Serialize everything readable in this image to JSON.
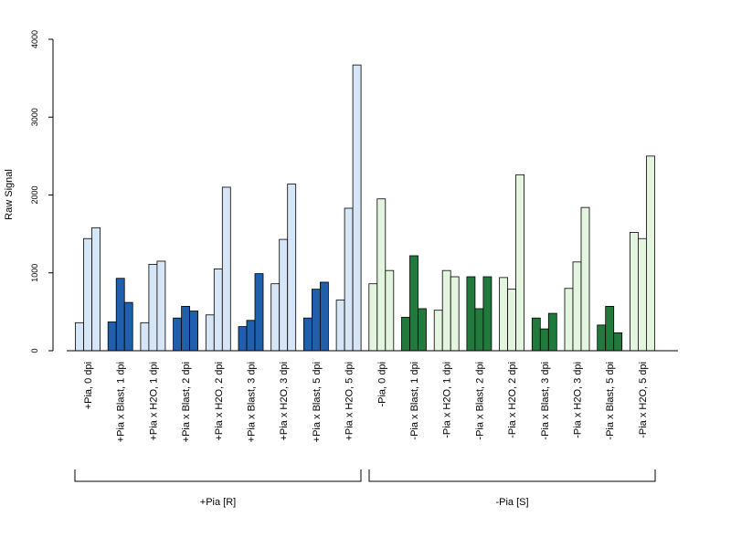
{
  "chart_data": {
    "type": "bar",
    "ylabel": "Raw Signal",
    "ylim": [
      0,
      4000
    ],
    "yticks": [
      0,
      1000,
      2000,
      3000,
      4000
    ],
    "grid": false,
    "categories": [
      "+Pia, 0 dpi",
      "+Pia x Blast, 1 dpi",
      "+Pia x H2O, 1 dpi",
      "+Pia x Blast, 2 dpi",
      "+Pia x H2O, 2 dpi",
      "+Pia x Blast, 3 dpi",
      "+Pia x H2O, 3 dpi",
      "+Pia x Blast, 5 dpi",
      "+Pia x H2O, 5 dpi",
      "-Pia, 0 dpi",
      "-Pia x Blast, 1 dpi",
      "-Pia x H2O, 1 dpi",
      "-Pia x Blast, 2 dpi",
      "-Pia x H2O, 2 dpi",
      "-Pia x Blast, 3 dpi",
      "-Pia x H2O, 3 dpi",
      "-Pia x Blast, 5 dpi",
      "-Pia x H2O, 5 dpi"
    ],
    "bar_colors": [
      "#d6e6f7",
      "#1f5fad",
      "#d6e6f7",
      "#1f5fad",
      "#d6e6f7",
      "#1f5fad",
      "#d6e6f7",
      "#1f5fad",
      "#d6e6f7",
      "#e3f5de",
      "#217a3c",
      "#e3f5de",
      "#217a3c",
      "#e3f5de",
      "#217a3c",
      "#e3f5de",
      "#217a3c",
      "#e3f5de"
    ],
    "values": [
      [
        360,
        1440,
        1580
      ],
      [
        370,
        930,
        620
      ],
      [
        360,
        1110,
        1150
      ],
      [
        420,
        570,
        510
      ],
      [
        460,
        1050,
        2100
      ],
      [
        310,
        390,
        990
      ],
      [
        860,
        1430,
        2140
      ],
      [
        420,
        790,
        880
      ],
      [
        650,
        1830,
        3670
      ],
      [
        860,
        1950,
        1030
      ],
      [
        430,
        1220,
        540
      ],
      [
        520,
        1030,
        950
      ],
      [
        950,
        540,
        950
      ],
      [
        940,
        790,
        2260
      ],
      [
        420,
        280,
        480
      ],
      [
        800,
        1140,
        1840
      ],
      [
        330,
        570,
        230
      ],
      [
        1520,
        1440,
        2500
      ]
    ],
    "groups": [
      {
        "label": "+Pia [R]",
        "from": 0,
        "to": 8
      },
      {
        "label": "-Pia [S]",
        "from": 9,
        "to": 17
      }
    ]
  }
}
